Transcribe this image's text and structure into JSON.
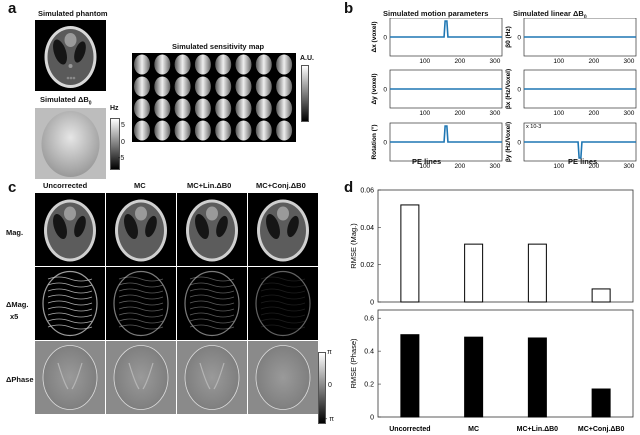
{
  "panels": {
    "a": "a",
    "b": "b",
    "c": "c",
    "d": "d"
  },
  "panel_a": {
    "phantom_title": "Simulated phantom",
    "db0_title_text": "Simulated ",
    "db0_title_sym": "ΔB",
    "db0_title_sub": "0",
    "hz_unit": "Hz",
    "hz_ticks": [
      "5",
      "0",
      "-5"
    ],
    "sens_title": "Simulated sensitivity map",
    "au_unit": "A.U."
  },
  "panel_b": {
    "title_motion": "Simulated motion parameters",
    "title_linear_text": "Simulated linear ",
    "title_linear_sym": "ΔB",
    "title_linear_sub": "0",
    "xlabel": "PE lines",
    "ylabel_dx": "Δx (voxel)",
    "ylabel_dy": "Δy (voxel)",
    "ylabel_rot": "Rotation (°)",
    "ylabel_b0": "β0 (Hz)",
    "ylabel_bx": "βx (Hz/Voxel)",
    "ylabel_by": "βy (Hz/Voxel)",
    "exp_label": "x 10-3",
    "xticks": [
      "100",
      "200",
      "300"
    ]
  },
  "panel_c": {
    "columns": [
      "Uncorrected",
      "MC",
      "MC+Lin.ΔB0",
      "MC+Conj.ΔB0"
    ],
    "rows": [
      "Mag.",
      "ΔMag.",
      "x5",
      "ΔPhase"
    ],
    "cbar_ticks": [
      "π",
      "0",
      "- π"
    ]
  },
  "chart_data": [
    {
      "type": "line",
      "title": "Simulated motion parameters",
      "xlabel": "PE lines",
      "xlim": [
        1,
        320
      ],
      "series": [
        {
          "name": "Δx (voxel)",
          "x": [
            1,
            155,
            158,
            163,
            166,
            320
          ],
          "values": [
            0,
            0,
            1,
            1,
            0,
            0
          ]
        },
        {
          "name": "Δy (voxel)",
          "x": [
            1,
            320
          ],
          "values": [
            0,
            0
          ]
        },
        {
          "name": "Rotation (°)",
          "x": [
            1,
            155,
            158,
            163,
            166,
            320
          ],
          "values": [
            0,
            0,
            1,
            1,
            0,
            0
          ]
        }
      ]
    },
    {
      "type": "line",
      "title": "Simulated linear ΔB0",
      "xlabel": "PE lines",
      "xlim": [
        1,
        320
      ],
      "series": [
        {
          "name": "β0 (Hz)",
          "x": [
            1,
            320
          ],
          "values": [
            0,
            0
          ]
        },
        {
          "name": "βx (Hz/Voxel)",
          "x": [
            1,
            320
          ],
          "values": [
            0,
            0
          ]
        },
        {
          "name": "βy (Hz/Voxel)",
          "x": [
            1,
            155,
            158,
            163,
            166,
            320
          ],
          "values": [
            0,
            0,
            -1,
            -1,
            0,
            0
          ]
        }
      ]
    },
    {
      "type": "bar",
      "ylabel": "RMSE (Mag.)",
      "ylim": [
        0,
        0.06
      ],
      "yticks": [
        "0",
        "0.02",
        "0.04",
        "0.06"
      ],
      "categories": [
        "Uncorrected",
        "MC",
        "MC+Lin.ΔB0",
        "MC+Conj.ΔB0"
      ],
      "values": [
        0.052,
        0.031,
        0.031,
        0.007
      ]
    },
    {
      "type": "bar",
      "ylabel": "RMSE (Phase)",
      "ylim": [
        0,
        0.65
      ],
      "yticks": [
        "0",
        "0.2",
        "0.4",
        "0.6"
      ],
      "categories": [
        "Uncorrected",
        "MC",
        "MC+Lin.ΔB0",
        "MC+Conj.ΔB0"
      ],
      "values": [
        0.5,
        0.485,
        0.48,
        0.17
      ]
    }
  ],
  "colors": {
    "line": "#1f77b4",
    "bar_black": "#000000"
  }
}
